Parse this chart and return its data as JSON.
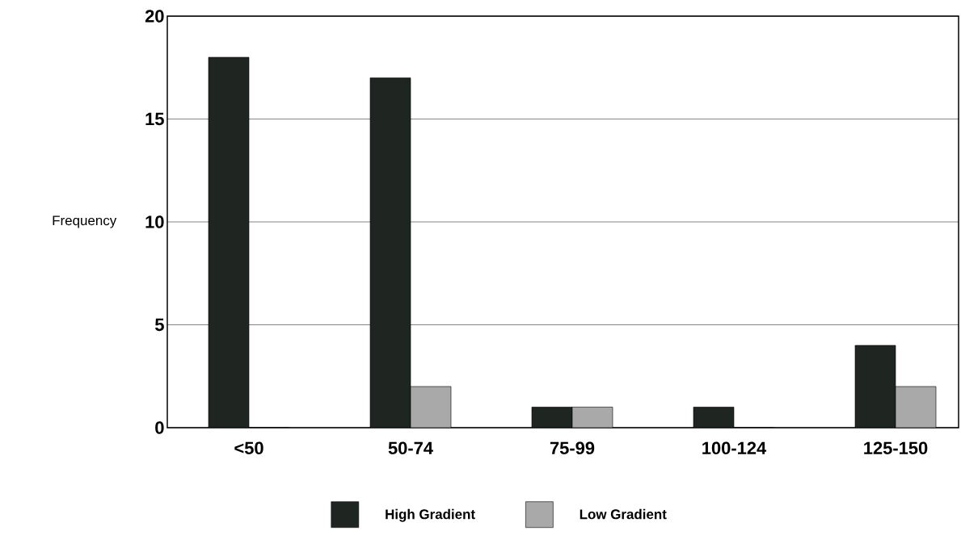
{
  "chart_data": {
    "type": "bar",
    "ylabel": "Frequency",
    "categories": [
      "<50",
      "50-74",
      "75-99",
      "100-124",
      "125-150"
    ],
    "series": [
      {
        "name": "High Gradient",
        "color": "#1f2622",
        "values": [
          18,
          17,
          1,
          1,
          4
        ]
      },
      {
        "name": "Low Gradient",
        "color": "#a9a9a9",
        "values": [
          0,
          2,
          1,
          0,
          2
        ]
      }
    ],
    "ylim": [
      0,
      20
    ],
    "yticks": [
      0,
      5,
      10,
      15,
      20
    ],
    "grid": "y",
    "legend": "bottom"
  }
}
